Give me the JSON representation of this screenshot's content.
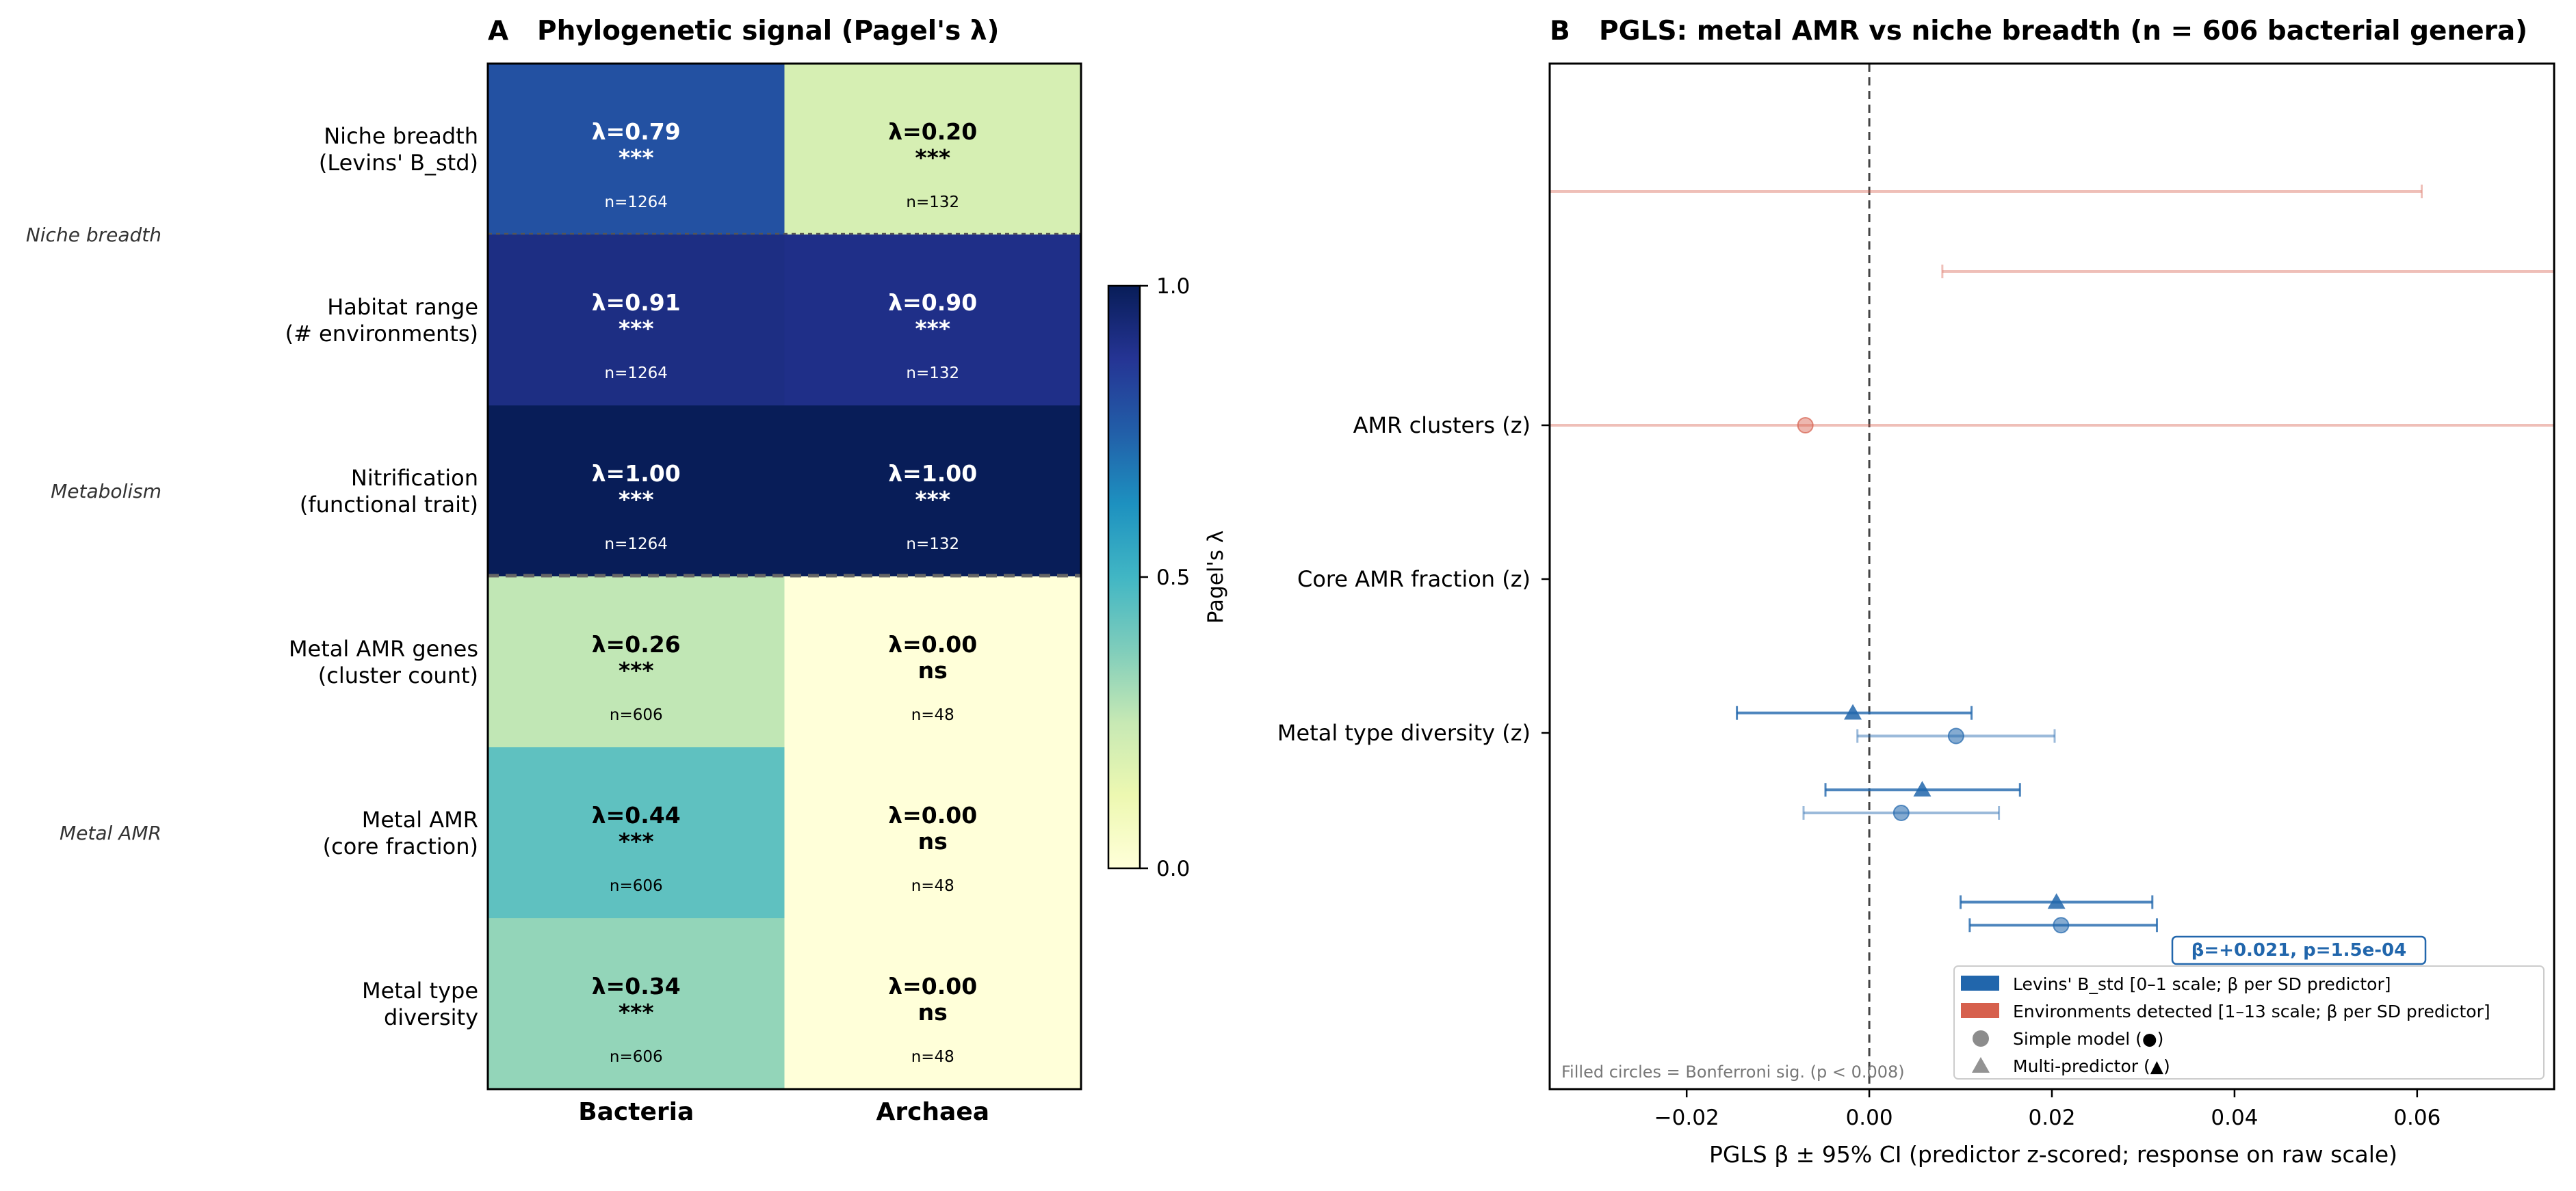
{
  "panelA": {
    "panel_letter": "A",
    "title": "Phylogenetic signal (Pagel's λ)",
    "group_labels": [
      {
        "label": "Niche breadth",
        "rows": [
          0,
          1
        ]
      },
      {
        "label": "Metabolism",
        "rows": [
          2,
          2
        ]
      },
      {
        "label": "Metal AMR",
        "rows": [
          3,
          5
        ]
      }
    ],
    "rows": [
      {
        "label": [
          "Niche breadth",
          "(Levins' B_std)"
        ]
      },
      {
        "label": [
          "Habitat range",
          "(# environments)"
        ]
      },
      {
        "label": [
          "Nitrification",
          "(functional trait)"
        ]
      },
      {
        "label": [
          "Metal AMR genes",
          "(cluster count)"
        ]
      },
      {
        "label": [
          "Metal AMR",
          "(core fraction)"
        ]
      },
      {
        "label": [
          "Metal type",
          "diversity"
        ]
      }
    ],
    "columns": [
      "Bacteria",
      "Archaea"
    ],
    "colorbar": {
      "label": "Pagel's λ",
      "ticks": [
        "0.0",
        "0.5",
        "1.0"
      ],
      "colormap": "YlGnBu",
      "range": [
        0,
        1
      ]
    }
  },
  "panelB": {
    "panel_letter": "B",
    "title": "PGLS: metal AMR vs niche breadth  (n = 606 bacterial genera)",
    "y_labels": [
      "AMR clusters (z)",
      "Core AMR fraction (z)",
      "Metal type diversity (z)"
    ],
    "xlabel": "PGLS β ± 95% CI  (predictor z-scored; response on raw scale)",
    "x_ticks": [
      "−0.02",
      "0.00",
      "0.02",
      "0.04",
      "0.06"
    ],
    "annotation": "β=+0.021, p=1.5e-04",
    "footnote": "Filled circles = Bonferroni sig. (p < 0.008)",
    "legend": [
      {
        "label": "Levins' B_std  [0–1 scale; β per SD predictor]",
        "marker": "patch",
        "color": "#2166ac"
      },
      {
        "label": "Environments detected  [1–13 scale; β per SD predictor]",
        "marker": "patch",
        "color": "#d6604d"
      },
      {
        "label": "Simple model (●)",
        "marker": "circle",
        "color": "#808080"
      },
      {
        "label": "Multi-predictor (▲)",
        "marker": "triangle",
        "color": "#808080"
      }
    ]
  },
  "chart_data": [
    {
      "type": "heatmap",
      "title": "Phylogenetic signal (Pagel's λ)",
      "rows": [
        "Niche breadth (Levins' B_std)",
        "Habitat range (# environments)",
        "Nitrification (functional trait)",
        "Metal AMR genes (cluster count)",
        "Metal AMR (core fraction)",
        "Metal type diversity"
      ],
      "columns": [
        "Bacteria",
        "Archaea"
      ],
      "values": [
        [
          0.79,
          0.2
        ],
        [
          0.91,
          0.9
        ],
        [
          1.0,
          1.0
        ],
        [
          0.26,
          0.0
        ],
        [
          0.44,
          0.0
        ],
        [
          0.34,
          0.0
        ]
      ],
      "cell_labels": [
        [
          "λ=0.79",
          "λ=0.20"
        ],
        [
          "λ=0.91",
          "λ=0.90"
        ],
        [
          "λ=1.00",
          "λ=1.00"
        ],
        [
          "λ=0.26",
          "λ=0.00"
        ],
        [
          "λ=0.44",
          "λ=0.00"
        ],
        [
          "λ=0.34",
          "λ=0.00"
        ]
      ],
      "significance": [
        [
          "***",
          "***"
        ],
        [
          "***",
          "***"
        ],
        [
          "***",
          "***"
        ],
        [
          "***",
          "ns"
        ],
        [
          "***",
          "ns"
        ],
        [
          "***",
          "ns"
        ]
      ],
      "n": [
        [
          "n=1264",
          "n=132"
        ],
        [
          "n=1264",
          "n=132"
        ],
        [
          "n=1264",
          "n=132"
        ],
        [
          "n=606",
          "n=48"
        ],
        [
          "n=606",
          "n=48"
        ],
        [
          "n=606",
          "n=48"
        ]
      ],
      "colorbar_label": "Pagel's λ",
      "colorbar_range": [
        0,
        1
      ]
    },
    {
      "type": "scatter",
      "subtype": "forest",
      "title": "PGLS: metal AMR vs niche breadth  (n = 606 bacterial genera)",
      "xlabel": "PGLS β ± 95% CI  (predictor z-scored; response on raw scale)",
      "xlim": [
        -0.035,
        0.075
      ],
      "x_ticks": [
        -0.02,
        0.0,
        0.02,
        0.04,
        0.06
      ],
      "reference_line": 0.0,
      "outcomes": [
        "AMR clusters (z)",
        "Core AMR fraction (z)",
        "Metal type diversity (z)"
      ],
      "points": [
        {
          "predictor": "Environments detected",
          "model": "Simple",
          "y": 2.52,
          "beta": null,
          "ci": [
            -0.035,
            0.0605
          ],
          "significant": false,
          "color": "#d6604d"
        },
        {
          "predictor": "Environments detected",
          "model": "Multi-predictor",
          "y": 2.0,
          "beta": null,
          "ci": [
            0.008,
            0.075
          ],
          "significant": false,
          "color": "#d6604d"
        },
        {
          "predictor": "Environments detected",
          "model": "Simple",
          "y": 1.0,
          "beta": -0.007,
          "ci": [
            -0.035,
            0.075
          ],
          "significant": false,
          "color": "#d6604d"
        },
        {
          "predictor": "Levins' B_std",
          "model": "Multi-predictor",
          "y": -0.87,
          "beta": -0.0018,
          "ci": [
            -0.0145,
            0.0112
          ],
          "significant": true,
          "color": "#2166ac"
        },
        {
          "predictor": "Levins' B_std",
          "model": "Simple",
          "y": -1.02,
          "beta": 0.0095,
          "ci": [
            -0.0013,
            0.0203
          ],
          "significant": false,
          "color": "#2166ac"
        },
        {
          "predictor": "Levins' B_std",
          "model": "Multi-predictor",
          "y": -1.37,
          "beta": 0.0058,
          "ci": [
            -0.0048,
            0.0165
          ],
          "significant": true,
          "color": "#2166ac"
        },
        {
          "predictor": "Levins' B_std",
          "model": "Simple",
          "y": -1.52,
          "beta": 0.0035,
          "ci": [
            -0.0072,
            0.0142
          ],
          "significant": false,
          "color": "#2166ac"
        },
        {
          "predictor": "Levins' B_std",
          "model": "Multi-predictor",
          "y": -2.1,
          "beta": 0.0205,
          "ci": [
            0.01,
            0.031
          ],
          "significant": true,
          "color": "#2166ac"
        },
        {
          "predictor": "Levins' B_std",
          "model": "Simple",
          "y": -2.25,
          "beta": 0.021,
          "ci": [
            0.011,
            0.0315
          ],
          "significant": true,
          "color": "#2166ac"
        }
      ],
      "annotation": "β=+0.021, p=1.5e-04"
    }
  ]
}
